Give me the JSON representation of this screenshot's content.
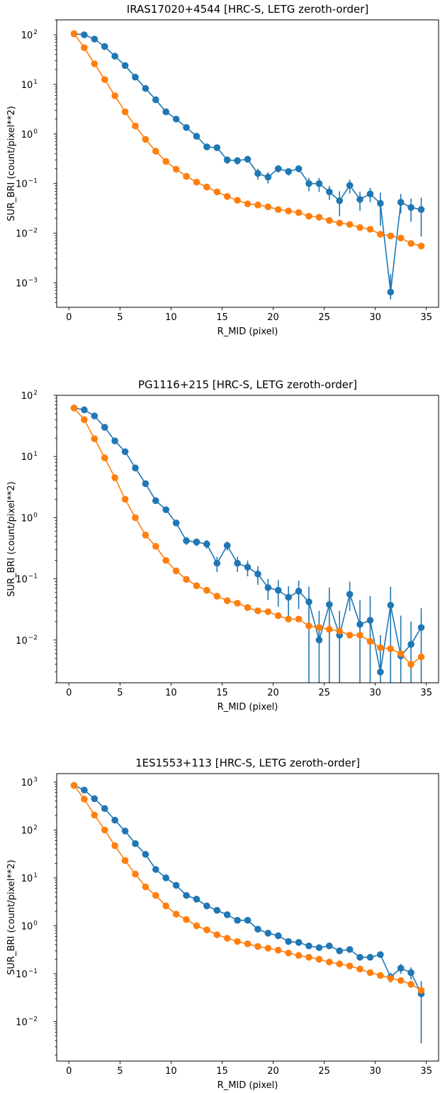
{
  "colors": {
    "series1": "#1f77b4",
    "series2": "#ff7f0e"
  },
  "chart_data": [
    {
      "type": "line",
      "title": "IRAS17020+4544 [HRC-S, LETG zeroth-order]",
      "xlabel": "R_MID (pixel)",
      "ylabel": "SUR_BRI (count/pixel**2)",
      "xlim": [
        -1.2,
        36.2
      ],
      "ylim": [
        0.00032,
        200
      ],
      "yscale": "log",
      "xticks": [
        0,
        5,
        10,
        15,
        20,
        25,
        30,
        35
      ],
      "ytick_exponents": [
        -3,
        -2,
        -1,
        0,
        1,
        2
      ],
      "x": [
        0.5,
        1.5,
        2.5,
        3.5,
        4.5,
        5.5,
        6.5,
        7.5,
        8.5,
        9.5,
        10.5,
        11.5,
        12.5,
        13.5,
        14.5,
        15.5,
        16.5,
        17.5,
        18.5,
        19.5,
        20.5,
        21.5,
        22.5,
        23.5,
        24.5,
        25.5,
        26.5,
        27.5,
        28.5,
        29.5,
        30.5,
        31.5,
        32.5,
        33.5,
        34.5
      ],
      "series": [
        {
          "color": "#1f77b4",
          "values": [
            105,
            100,
            82,
            58,
            37,
            24,
            14,
            8.3,
            4.9,
            2.8,
            2.0,
            1.35,
            0.9,
            0.55,
            0.53,
            0.3,
            0.29,
            0.31,
            0.16,
            0.135,
            0.2,
            0.175,
            0.2,
            0.1,
            0.1,
            0.068,
            0.045,
            0.092,
            0.048,
            0.062,
            0.04,
            0.00065,
            0.042,
            0.033,
            0.03
          ],
          "err_low": [
            103,
            98,
            80,
            56,
            35.5,
            23,
            13.3,
            7.8,
            4.6,
            2.6,
            1.85,
            1.24,
            0.82,
            0.48,
            0.46,
            0.25,
            0.24,
            0.27,
            0.12,
            0.1,
            0.167,
            0.145,
            0.167,
            0.07,
            0.068,
            0.047,
            0.022,
            0.063,
            0.028,
            0.042,
            0.014,
            0.00046,
            0.025,
            0.017,
            0.0085
          ],
          "err_high": [
            107,
            102,
            84,
            60,
            38.5,
            25,
            14.7,
            8.8,
            5.2,
            3.0,
            2.15,
            1.46,
            0.98,
            0.62,
            0.6,
            0.35,
            0.34,
            0.35,
            0.2,
            0.17,
            0.233,
            0.205,
            0.233,
            0.13,
            0.13,
            0.09,
            0.07,
            0.12,
            0.068,
            0.082,
            0.066,
            0.0015,
            0.062,
            0.05,
            0.052
          ]
        },
        {
          "color": "#ff7f0e",
          "values": [
            105,
            55,
            26,
            12.5,
            5.9,
            2.8,
            1.45,
            0.78,
            0.45,
            0.28,
            0.195,
            0.14,
            0.107,
            0.085,
            0.068,
            0.055,
            0.046,
            0.039,
            0.037,
            0.034,
            0.03,
            0.028,
            0.026,
            0.022,
            0.021,
            0.018,
            0.016,
            0.015,
            0.013,
            0.012,
            0.0095,
            0.0088,
            0.008,
            0.0062,
            0.0055
          ]
        }
      ]
    },
    {
      "type": "line",
      "title": "PG1116+215 [HRC-S, LETG zeroth-order]",
      "xlabel": "R_MID (pixel)",
      "ylabel": "SUR_BRI (count/pixel**2)",
      "xlim": [
        -1.2,
        36.2
      ],
      "ylim": [
        0.002,
        100
      ],
      "yscale": "log",
      "xticks": [
        0,
        5,
        10,
        15,
        20,
        25,
        30,
        35
      ],
      "ytick_exponents": [
        -2,
        -1,
        0,
        1,
        2
      ],
      "x": [
        0.5,
        1.5,
        2.5,
        3.5,
        4.5,
        5.5,
        6.5,
        7.5,
        8.5,
        9.5,
        10.5,
        11.5,
        12.5,
        13.5,
        14.5,
        15.5,
        16.5,
        17.5,
        18.5,
        19.5,
        20.5,
        21.5,
        22.5,
        23.5,
        24.5,
        25.5,
        26.5,
        27.5,
        28.5,
        29.5,
        30.5,
        31.5,
        32.5,
        33.5,
        34.5
      ],
      "series": [
        {
          "color": "#1f77b4",
          "values": [
            62,
            58,
            46,
            30,
            18,
            12,
            6.5,
            3.6,
            1.9,
            1.35,
            0.82,
            0.42,
            0.4,
            0.37,
            0.18,
            0.35,
            0.18,
            0.155,
            0.12,
            0.072,
            0.065,
            0.05,
            0.063,
            0.042,
            0.01,
            0.038,
            0.012,
            0.056,
            0.018,
            0.021,
            0.003,
            0.037,
            0.0055,
            0.0085,
            0.016
          ],
          "err_low": [
            60,
            56,
            44,
            28.5,
            17,
            11.3,
            6.1,
            3.35,
            1.75,
            1.22,
            0.74,
            0.36,
            0.34,
            0.31,
            0.13,
            0.29,
            0.13,
            0.11,
            0.08,
            0.045,
            0.035,
            0.024,
            0.032,
            0.0015,
            0.001,
            0.0015,
            0.001,
            0.03,
            0.0015,
            0.0015,
            0.001,
            0.0015,
            0.0015,
            0.0015,
            0.0015
          ],
          "err_high": [
            64,
            60,
            48,
            31.5,
            19,
            12.7,
            6.9,
            3.85,
            2.05,
            1.48,
            0.9,
            0.48,
            0.46,
            0.43,
            0.23,
            0.41,
            0.23,
            0.2,
            0.16,
            0.1,
            0.095,
            0.076,
            0.094,
            0.075,
            0.03,
            0.072,
            0.03,
            0.09,
            0.045,
            0.052,
            0.012,
            0.075,
            0.025,
            0.02,
            0.033
          ]
        },
        {
          "color": "#ff7f0e",
          "values": [
            62,
            40,
            19.5,
            9.5,
            4.5,
            2.0,
            1.0,
            0.52,
            0.34,
            0.2,
            0.135,
            0.098,
            0.077,
            0.065,
            0.052,
            0.044,
            0.04,
            0.034,
            0.03,
            0.029,
            0.025,
            0.022,
            0.022,
            0.017,
            0.016,
            0.015,
            0.014,
            0.012,
            0.012,
            0.0095,
            0.0075,
            0.0072,
            0.006,
            0.004,
            0.0053
          ]
        }
      ]
    },
    {
      "type": "line",
      "title": "1ES1553+113 [HRC-S, LETG zeroth-order]",
      "xlabel": "R_MID (pixel)",
      "ylabel": "SUR_BRI (count/pixel**2)",
      "xlim": [
        -1.2,
        36.2
      ],
      "ylim": [
        0.0015,
        1500
      ],
      "yscale": "log",
      "xticks": [
        0,
        5,
        10,
        15,
        20,
        25,
        30,
        35
      ],
      "ytick_exponents": [
        -2,
        -1,
        0,
        1,
        2,
        3
      ],
      "x": [
        0.5,
        1.5,
        2.5,
        3.5,
        4.5,
        5.5,
        6.5,
        7.5,
        8.5,
        9.5,
        10.5,
        11.5,
        12.5,
        13.5,
        14.5,
        15.5,
        16.5,
        17.5,
        18.5,
        19.5,
        20.5,
        21.5,
        22.5,
        23.5,
        24.5,
        25.5,
        26.5,
        27.5,
        28.5,
        29.5,
        30.5,
        31.5,
        32.5,
        33.5,
        34.5
      ],
      "series": [
        {
          "color": "#1f77b4",
          "values": [
            850,
            680,
            450,
            280,
            160,
            95,
            52,
            31,
            15,
            10,
            7,
            4.3,
            3.6,
            2.6,
            2.1,
            1.7,
            1.3,
            1.3,
            0.85,
            0.7,
            0.62,
            0.47,
            0.45,
            0.38,
            0.35,
            0.38,
            0.3,
            0.32,
            0.22,
            0.22,
            0.25,
            0.085,
            0.13,
            0.105,
            0.038
          ],
          "err_low": [
            840,
            670,
            443,
            275,
            157,
            93,
            51,
            30.4,
            14.6,
            9.7,
            6.8,
            4.15,
            3.48,
            2.5,
            2.02,
            1.62,
            1.24,
            1.22,
            0.8,
            0.65,
            0.58,
            0.43,
            0.41,
            0.35,
            0.32,
            0.35,
            0.27,
            0.29,
            0.2,
            0.2,
            0.22,
            0.065,
            0.1,
            0.075,
            0.0035
          ],
          "err_high": [
            860,
            690,
            457,
            285,
            163,
            97,
            53,
            31.6,
            15.4,
            10.3,
            7.2,
            4.45,
            3.72,
            2.7,
            2.18,
            1.78,
            1.36,
            1.38,
            0.9,
            0.75,
            0.66,
            0.51,
            0.49,
            0.41,
            0.38,
            0.41,
            0.33,
            0.35,
            0.24,
            0.24,
            0.28,
            0.105,
            0.16,
            0.135,
            0.07
          ]
        },
        {
          "color": "#ff7f0e",
          "values": [
            850,
            440,
            205,
            100,
            47,
            23,
            12,
            6.5,
            4.3,
            2.6,
            1.75,
            1.35,
            1.0,
            0.82,
            0.65,
            0.55,
            0.47,
            0.42,
            0.37,
            0.34,
            0.31,
            0.27,
            0.24,
            0.22,
            0.2,
            0.175,
            0.16,
            0.145,
            0.125,
            0.105,
            0.092,
            0.08,
            0.072,
            0.06,
            0.045
          ]
        }
      ]
    }
  ]
}
